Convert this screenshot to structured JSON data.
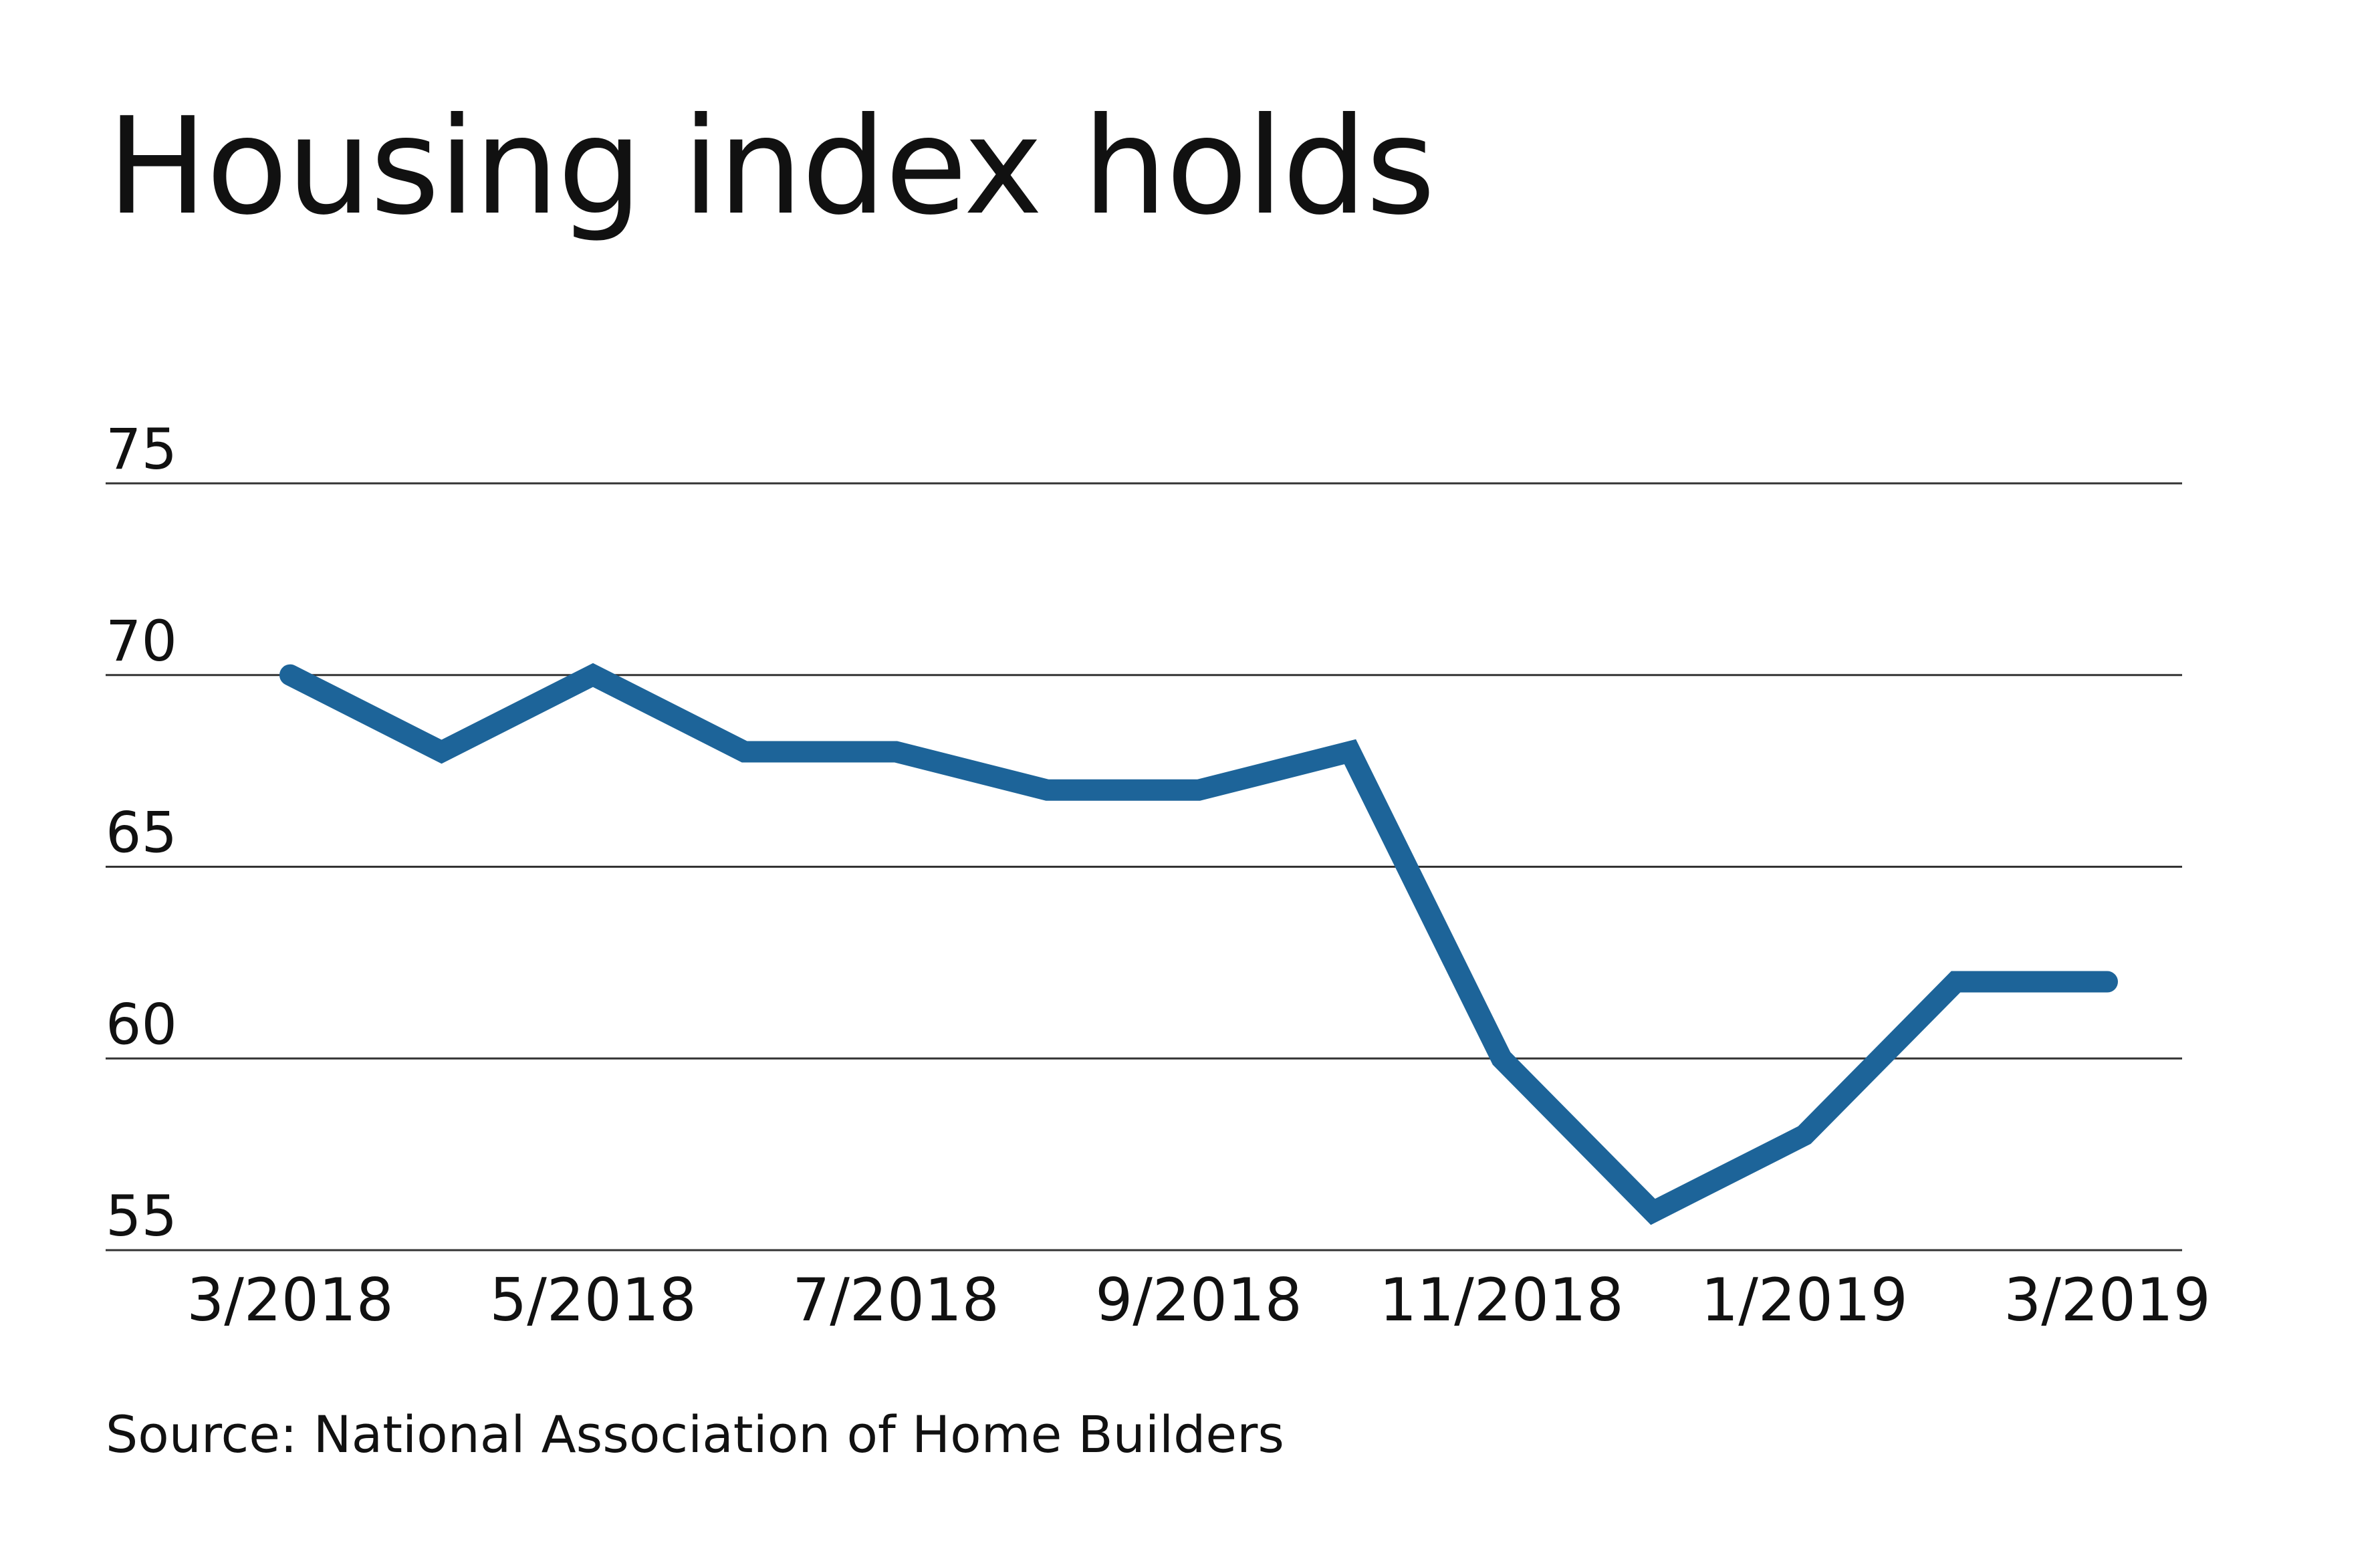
{
  "chart_data": {
    "type": "line",
    "title": "Housing index holds",
    "source": "Source: National Association of Home Builders",
    "xlabel": "",
    "ylabel": "",
    "x": [
      "3/2018",
      "4/2018",
      "5/2018",
      "6/2018",
      "7/2018",
      "8/2018",
      "9/2018",
      "10/2018",
      "11/2018",
      "12/2018",
      "1/2019",
      "2/2019",
      "3/2019"
    ],
    "x_tick_labels": [
      "3/2018",
      "5/2018",
      "7/2018",
      "9/2018",
      "11/2018",
      "1/2019",
      "3/2019"
    ],
    "series": [
      {
        "values": [
          70,
          68,
          70,
          68,
          68,
          67,
          67,
          68,
          60,
          56,
          58,
          62,
          62
        ],
        "color": "#1d6499"
      }
    ],
    "y_ticks": [
      55,
      60,
      65,
      70,
      75
    ],
    "ylim": [
      55,
      75
    ],
    "grid": true,
    "legend": "none",
    "colors": {
      "line": "#1d6499",
      "grid": "#333333",
      "text": "#111111"
    }
  }
}
